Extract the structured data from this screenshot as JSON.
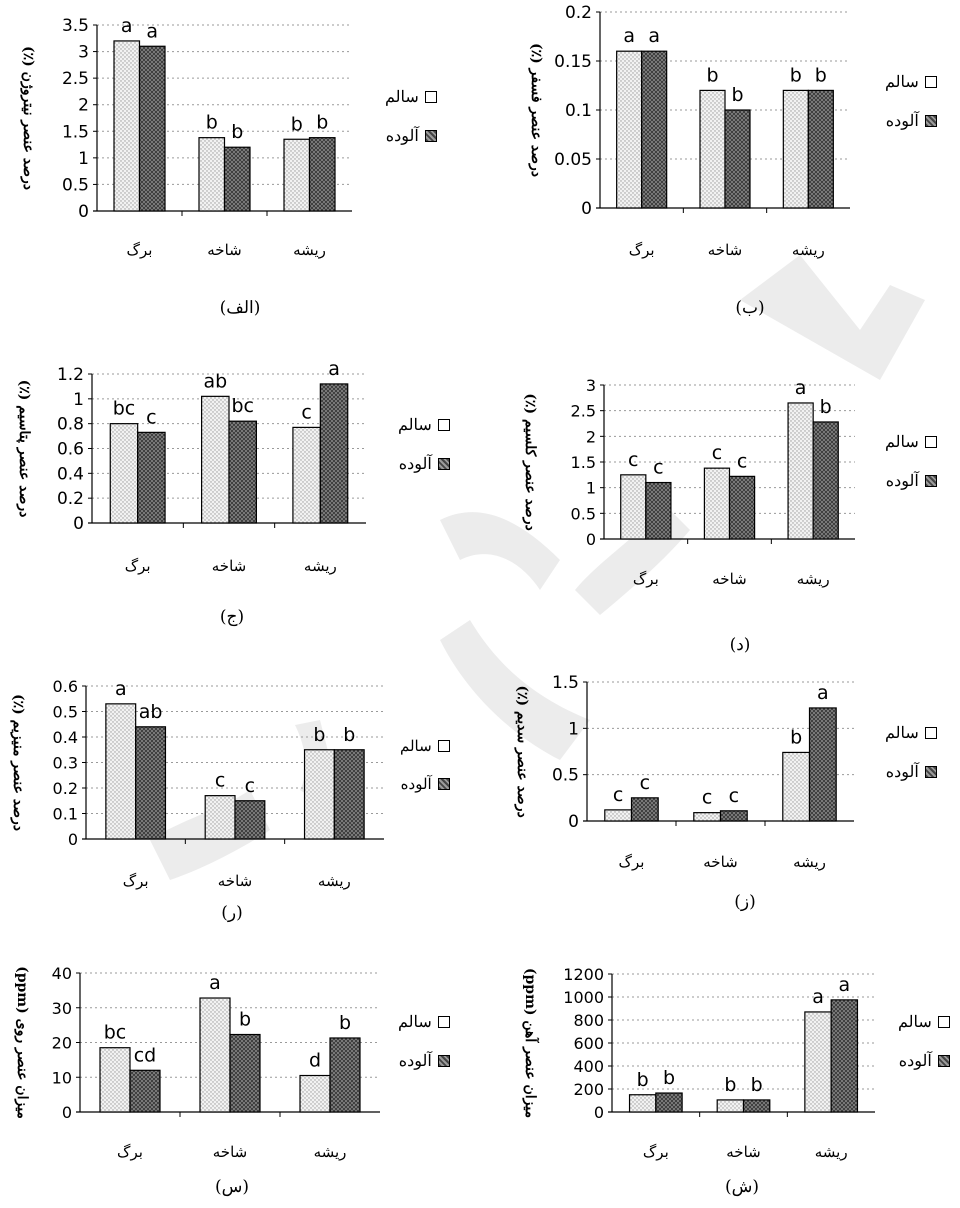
{
  "legend": {
    "healthy": "سالم",
    "infected": "آلوده"
  },
  "panels": [
    {
      "caption": "(الف)",
      "ylabel": "درصد عنصر نیتروژن (٪)",
      "chart_data": {
        "type": "bar",
        "categories": [
          "برگ",
          "شاخه",
          "ریشه"
        ],
        "series": [
          {
            "name": "سالم",
            "values": [
              3.2,
              1.38,
              1.35
            ],
            "letters": [
              "a",
              "b",
              "b"
            ]
          },
          {
            "name": "آلوده",
            "values": [
              3.1,
              1.2,
              1.38
            ],
            "letters": [
              "a",
              "b",
              "b"
            ]
          }
        ],
        "ylim": [
          0,
          3.5
        ],
        "yticks": [
          "0",
          "0.5",
          "1",
          "1.5",
          "2",
          "2.5",
          "3",
          "3.5"
        ],
        "grid": true,
        "legend": "right"
      }
    },
    {
      "caption": "(ب)",
      "ylabel": "درصد عنصر فسفر (٪)",
      "chart_data": {
        "type": "bar",
        "categories": [
          "برگ",
          "شاخه",
          "ریشه"
        ],
        "series": [
          {
            "name": "سالم",
            "values": [
              0.16,
              0.12,
              0.12
            ],
            "letters": [
              "a",
              "b",
              "b"
            ]
          },
          {
            "name": "آلوده",
            "values": [
              0.16,
              0.1,
              0.12
            ],
            "letters": [
              "a",
              "b",
              "b"
            ]
          }
        ],
        "ylim": [
          0,
          0.2
        ],
        "yticks": [
          "0",
          "0.05",
          "0.1",
          "0.15",
          "0.2"
        ],
        "grid": true,
        "legend": "right"
      }
    },
    {
      "caption": "(ج)",
      "ylabel": "درصد عنصر پتاسیم (٪)",
      "chart_data": {
        "type": "bar",
        "categories": [
          "برگ",
          "شاخه",
          "ریشه"
        ],
        "series": [
          {
            "name": "سالم",
            "values": [
              0.8,
              1.02,
              0.77
            ],
            "letters": [
              "bc",
              "ab",
              "c"
            ]
          },
          {
            "name": "آلوده",
            "values": [
              0.73,
              0.82,
              1.12
            ],
            "letters": [
              "c",
              "bc",
              "a"
            ]
          }
        ],
        "ylim": [
          0,
          1.2
        ],
        "yticks": [
          "0",
          "0.2",
          "0.4",
          "0.6",
          "0.8",
          "1",
          "1.2"
        ],
        "grid": true,
        "legend": "right"
      }
    },
    {
      "caption": "(د)",
      "ylabel": "درصد عنصر کلسیم (٪)",
      "chart_data": {
        "type": "bar",
        "categories": [
          "برگ",
          "شاخه",
          "ریشه"
        ],
        "series": [
          {
            "name": "سالم",
            "values": [
              1.25,
              1.38,
              2.65
            ],
            "letters": [
              "c",
              "c",
              "a"
            ]
          },
          {
            "name": "آلوده",
            "values": [
              1.1,
              1.22,
              2.28
            ],
            "letters": [
              "c",
              "c",
              "b"
            ]
          }
        ],
        "ylim": [
          0,
          3
        ],
        "yticks": [
          "0",
          "0.5",
          "1",
          "1.5",
          "2",
          "2.5",
          "3"
        ],
        "grid": true,
        "legend": "right"
      }
    },
    {
      "caption": "(ر)",
      "ylabel": "درصد عنصر منیزیم (٪)",
      "chart_data": {
        "type": "bar",
        "categories": [
          "برگ",
          "شاخه",
          "ریشه"
        ],
        "series": [
          {
            "name": "سالم",
            "values": [
              0.53,
              0.17,
              0.35
            ],
            "letters": [
              "a",
              "c",
              "b"
            ]
          },
          {
            "name": "آلوده",
            "values": [
              0.44,
              0.15,
              0.35
            ],
            "letters": [
              "ab",
              "c",
              "b"
            ]
          }
        ],
        "ylim": [
          0,
          0.6
        ],
        "yticks": [
          "0",
          "0.1",
          "0.2",
          "0.3",
          "0.4",
          "0.5",
          "0.6"
        ],
        "grid": true,
        "legend": "right"
      }
    },
    {
      "caption": "(ز)",
      "ylabel": "درصد عنصر سدیم (٪)",
      "chart_data": {
        "type": "bar",
        "categories": [
          "برگ",
          "شاخه",
          "ریشه"
        ],
        "series": [
          {
            "name": "سالم",
            "values": [
              0.12,
              0.09,
              0.74
            ],
            "letters": [
              "c",
              "c",
              "b"
            ]
          },
          {
            "name": "آلوده",
            "values": [
              0.25,
              0.11,
              1.22
            ],
            "letters": [
              "c",
              "c",
              "a"
            ]
          }
        ],
        "ylim": [
          0,
          1.5
        ],
        "yticks": [
          "0",
          "0.5",
          "1",
          "1.5"
        ],
        "grid": true,
        "legend": "right"
      }
    },
    {
      "caption": "(س)",
      "ylabel": "میزان عنصر روی (ppm)",
      "chart_data": {
        "type": "bar",
        "categories": [
          "برگ",
          "شاخه",
          "ریشه"
        ],
        "series": [
          {
            "name": "سالم",
            "values": [
              18.5,
              32.8,
              10.5
            ],
            "letters": [
              "bc",
              "a",
              "d"
            ]
          },
          {
            "name": "آلوده",
            "values": [
              12,
              22.3,
              21.3
            ],
            "letters": [
              "cd",
              "b",
              "b"
            ]
          }
        ],
        "ylim": [
          0,
          40
        ],
        "yticks": [
          "0",
          "10",
          "20",
          "30",
          "40"
        ],
        "grid": true,
        "legend": "right"
      }
    },
    {
      "caption": "(ش)",
      "ylabel": "میزان عنصر آهن (ppm)",
      "chart_data": {
        "type": "bar",
        "categories": [
          "برگ",
          "شاخه",
          "ریشه"
        ],
        "series": [
          {
            "name": "سالم",
            "values": [
              150,
              105,
              870
            ],
            "letters": [
              "b",
              "b",
              "a"
            ]
          },
          {
            "name": "آلوده",
            "values": [
              165,
              105,
              975
            ],
            "letters": [
              "b",
              "b",
              "a"
            ]
          }
        ],
        "ylim": [
          0,
          1200
        ],
        "yticks": [
          "0",
          "200",
          "400",
          "600",
          "800",
          "1000",
          "1200"
        ],
        "grid": true,
        "legend": "right"
      }
    }
  ]
}
